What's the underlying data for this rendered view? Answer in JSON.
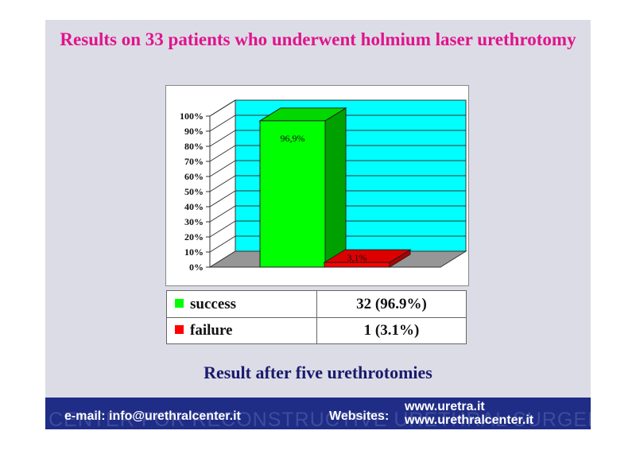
{
  "slide": {
    "title": "Results on 33 patients who underwent holmium laser urethrotomy",
    "subtitle": "Result after five urethrotomies"
  },
  "chart_data": {
    "type": "bar",
    "title": "",
    "categories": [
      "success",
      "failure"
    ],
    "values": [
      96.9,
      3.1
    ],
    "data_labels": [
      "96,9%",
      "3,1%"
    ],
    "colors": [
      "#00ff00",
      "#ff0000"
    ],
    "ylim": [
      0,
      100
    ],
    "yticks": [
      "0%",
      "10%",
      "20%",
      "30%",
      "40%",
      "50%",
      "60%",
      "70%",
      "80%",
      "90%",
      "100%"
    ],
    "grid": true,
    "three_d": true
  },
  "table": {
    "rows": [
      {
        "label": "success",
        "value": "32 (96.9%)",
        "color": "#00ff00"
      },
      {
        "label": "failure",
        "value": "1 (3.1%)",
        "color": "#ff0000"
      }
    ]
  },
  "footer": {
    "email": "e-mail: info@urethralcenter.it",
    "websites_label": "Websites:",
    "site1": "www.uretra.it",
    "site2": "www.urethralcenter.it",
    "watermark": "CENTER FOR RECONSTRUCTIVE URETHRAL SURGERY"
  }
}
